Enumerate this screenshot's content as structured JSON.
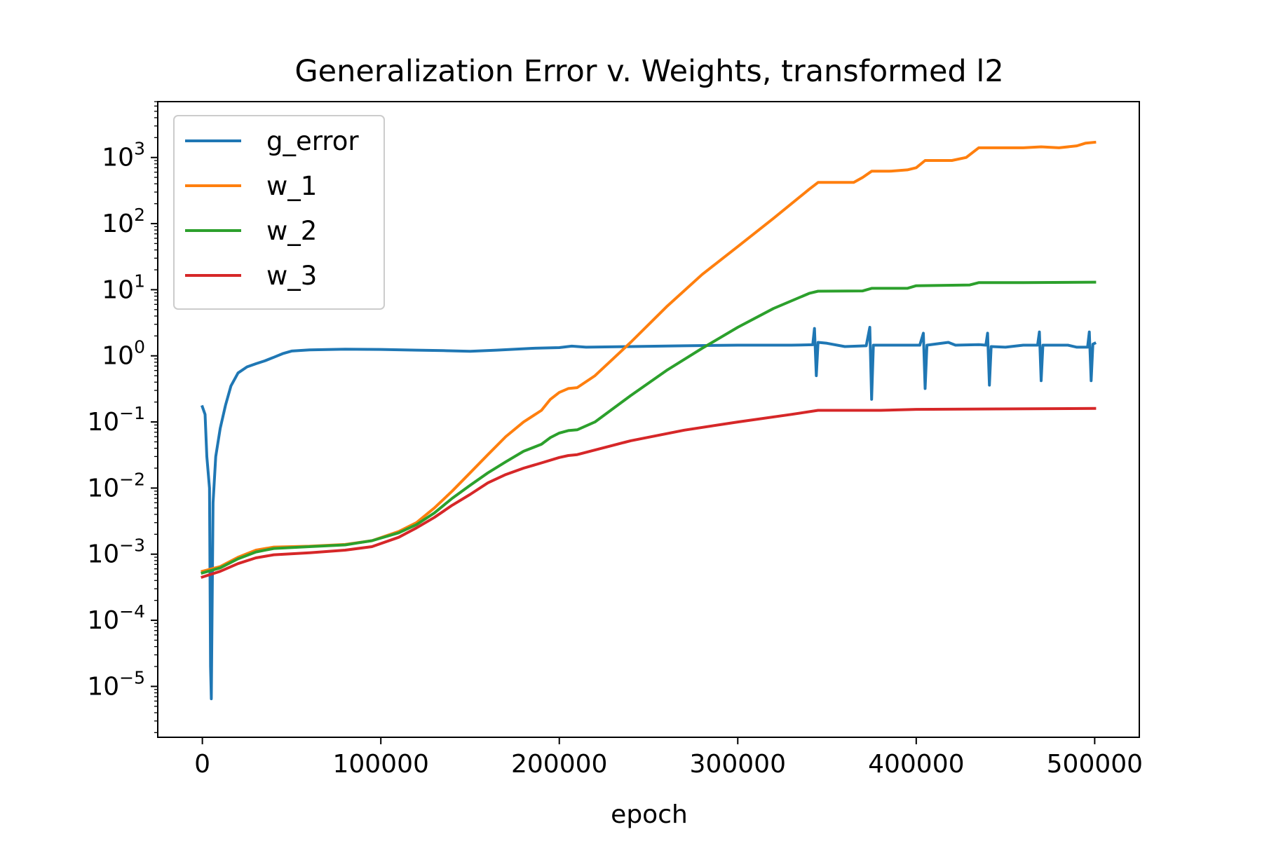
{
  "chart_data": {
    "type": "line",
    "title": "Generalization Error v. Weights, transformed l2",
    "xlabel": "epoch",
    "ylabel": "",
    "xlim": [
      -25000,
      525000
    ],
    "ylim": [
      1.7e-06,
      7000
    ],
    "yscale": "log",
    "x_ticks": [
      0,
      100000,
      200000,
      300000,
      400000,
      500000
    ],
    "x_tick_labels": [
      "0",
      "100000",
      "200000",
      "300000",
      "400000",
      "500000"
    ],
    "y_ticks": [
      {
        "value": 1e-05,
        "base": "10",
        "exp": "−5"
      },
      {
        "value": 0.0001,
        "base": "10",
        "exp": "−4"
      },
      {
        "value": 0.001,
        "base": "10",
        "exp": "−3"
      },
      {
        "value": 0.01,
        "base": "10",
        "exp": "−2"
      },
      {
        "value": 0.1,
        "base": "10",
        "exp": "−1"
      },
      {
        "value": 1,
        "base": "10",
        "exp": "0"
      },
      {
        "value": 10,
        "base": "10",
        "exp": "1"
      },
      {
        "value": 100,
        "base": "10",
        "exp": "2"
      },
      {
        "value": 1000,
        "base": "10",
        "exp": "3"
      }
    ],
    "grid": false,
    "legend_position": "upper-left",
    "series": [
      {
        "name": "g_error",
        "color": "#1f77b4",
        "points": [
          [
            0,
            0.17
          ],
          [
            1500,
            0.13
          ],
          [
            2500,
            0.03
          ],
          [
            4000,
            0.01
          ],
          [
            4600,
            2e-05
          ],
          [
            5000,
            6.5e-06
          ],
          [
            5400,
            0.0001
          ],
          [
            6000,
            0.006
          ],
          [
            7500,
            0.03
          ],
          [
            10000,
            0.08
          ],
          [
            13000,
            0.18
          ],
          [
            16000,
            0.35
          ],
          [
            20000,
            0.55
          ],
          [
            25000,
            0.68
          ],
          [
            30000,
            0.76
          ],
          [
            35000,
            0.84
          ],
          [
            40000,
            0.95
          ],
          [
            45000,
            1.08
          ],
          [
            50000,
            1.18
          ],
          [
            60000,
            1.23
          ],
          [
            80000,
            1.26
          ],
          [
            100000,
            1.25
          ],
          [
            120000,
            1.22
          ],
          [
            135000,
            1.2
          ],
          [
            150000,
            1.17
          ],
          [
            165000,
            1.22
          ],
          [
            185000,
            1.3
          ],
          [
            200000,
            1.33
          ],
          [
            207000,
            1.4
          ],
          [
            215000,
            1.35
          ],
          [
            240000,
            1.38
          ],
          [
            270000,
            1.42
          ],
          [
            300000,
            1.45
          ],
          [
            330000,
            1.45
          ],
          [
            342000,
            1.47
          ],
          [
            343000,
            2.6
          ],
          [
            344000,
            0.5
          ],
          [
            345000,
            1.6
          ],
          [
            350000,
            1.55
          ],
          [
            360000,
            1.38
          ],
          [
            372000,
            1.42
          ],
          [
            374000,
            2.7
          ],
          [
            375000,
            0.22
          ],
          [
            376000,
            1.45
          ],
          [
            390000,
            1.45
          ],
          [
            402000,
            1.45
          ],
          [
            404000,
            2.2
          ],
          [
            405000,
            0.32
          ],
          [
            406000,
            1.45
          ],
          [
            418000,
            1.6
          ],
          [
            422000,
            1.45
          ],
          [
            435000,
            1.48
          ],
          [
            439000,
            1.45
          ],
          [
            440000,
            2.2
          ],
          [
            441000,
            0.36
          ],
          [
            442000,
            1.38
          ],
          [
            450000,
            1.35
          ],
          [
            460000,
            1.45
          ],
          [
            468000,
            1.45
          ],
          [
            469000,
            2.3
          ],
          [
            470000,
            0.42
          ],
          [
            471000,
            1.45
          ],
          [
            485000,
            1.45
          ],
          [
            490000,
            1.35
          ],
          [
            496000,
            1.35
          ],
          [
            497000,
            2.3
          ],
          [
            498000,
            0.42
          ],
          [
            499000,
            1.5
          ],
          [
            500000,
            1.55
          ]
        ]
      },
      {
        "name": "w_1",
        "color": "#ff7f0e",
        "points": [
          [
            0,
            0.00055
          ],
          [
            10000,
            0.00065
          ],
          [
            20000,
            0.0009
          ],
          [
            30000,
            0.00115
          ],
          [
            40000,
            0.00128
          ],
          [
            60000,
            0.00132
          ],
          [
            80000,
            0.0014
          ],
          [
            95000,
            0.0016
          ],
          [
            110000,
            0.0022
          ],
          [
            120000,
            0.003
          ],
          [
            130000,
            0.005
          ],
          [
            140000,
            0.009
          ],
          [
            150000,
            0.017
          ],
          [
            160000,
            0.032
          ],
          [
            170000,
            0.06
          ],
          [
            180000,
            0.1
          ],
          [
            190000,
            0.15
          ],
          [
            195000,
            0.22
          ],
          [
            200000,
            0.28
          ],
          [
            205000,
            0.32
          ],
          [
            210000,
            0.33
          ],
          [
            220000,
            0.5
          ],
          [
            240000,
            1.6
          ],
          [
            260000,
            5.5
          ],
          [
            280000,
            17
          ],
          [
            300000,
            45
          ],
          [
            320000,
            120
          ],
          [
            340000,
            330
          ],
          [
            345000,
            420
          ],
          [
            355000,
            420
          ],
          [
            365000,
            420
          ],
          [
            370000,
            500
          ],
          [
            375000,
            620
          ],
          [
            385000,
            620
          ],
          [
            395000,
            650
          ],
          [
            400000,
            700
          ],
          [
            405000,
            900
          ],
          [
            420000,
            900
          ],
          [
            428000,
            1000
          ],
          [
            435000,
            1400
          ],
          [
            445000,
            1400
          ],
          [
            460000,
            1400
          ],
          [
            470000,
            1450
          ],
          [
            480000,
            1400
          ],
          [
            490000,
            1500
          ],
          [
            495000,
            1650
          ],
          [
            500000,
            1700
          ]
        ]
      },
      {
        "name": "w_2",
        "color": "#2ca02c",
        "points": [
          [
            0,
            0.00052
          ],
          [
            10000,
            0.00062
          ],
          [
            20000,
            0.00085
          ],
          [
            30000,
            0.00108
          ],
          [
            40000,
            0.00122
          ],
          [
            60000,
            0.0013
          ],
          [
            80000,
            0.00138
          ],
          [
            95000,
            0.0016
          ],
          [
            110000,
            0.0021
          ],
          [
            120000,
            0.0028
          ],
          [
            130000,
            0.0042
          ],
          [
            140000,
            0.007
          ],
          [
            150000,
            0.011
          ],
          [
            160000,
            0.017
          ],
          [
            170000,
            0.025
          ],
          [
            180000,
            0.036
          ],
          [
            190000,
            0.046
          ],
          [
            195000,
            0.058
          ],
          [
            200000,
            0.068
          ],
          [
            205000,
            0.074
          ],
          [
            210000,
            0.076
          ],
          [
            220000,
            0.1
          ],
          [
            240000,
            0.25
          ],
          [
            260000,
            0.6
          ],
          [
            280000,
            1.3
          ],
          [
            300000,
            2.7
          ],
          [
            320000,
            5.2
          ],
          [
            340000,
            8.8
          ],
          [
            345000,
            9.5
          ],
          [
            370000,
            9.6
          ],
          [
            375000,
            10.5
          ],
          [
            395000,
            10.5
          ],
          [
            400000,
            11.5
          ],
          [
            430000,
            11.8
          ],
          [
            435000,
            12.8
          ],
          [
            460000,
            12.8
          ],
          [
            500000,
            13
          ]
        ]
      },
      {
        "name": "w_3",
        "color": "#d62728",
        "points": [
          [
            0,
            0.00045
          ],
          [
            10000,
            0.00055
          ],
          [
            20000,
            0.00072
          ],
          [
            30000,
            0.00088
          ],
          [
            40000,
            0.00098
          ],
          [
            60000,
            0.00105
          ],
          [
            80000,
            0.00115
          ],
          [
            95000,
            0.0013
          ],
          [
            110000,
            0.0018
          ],
          [
            120000,
            0.0025
          ],
          [
            130000,
            0.0036
          ],
          [
            140000,
            0.0055
          ],
          [
            150000,
            0.008
          ],
          [
            160000,
            0.012
          ],
          [
            170000,
            0.016
          ],
          [
            180000,
            0.02
          ],
          [
            190000,
            0.024
          ],
          [
            200000,
            0.029
          ],
          [
            205000,
            0.031
          ],
          [
            210000,
            0.032
          ],
          [
            240000,
            0.052
          ],
          [
            270000,
            0.075
          ],
          [
            300000,
            0.1
          ],
          [
            330000,
            0.13
          ],
          [
            345000,
            0.15
          ],
          [
            380000,
            0.15
          ],
          [
            400000,
            0.155
          ],
          [
            500000,
            0.16
          ]
        ]
      }
    ]
  }
}
